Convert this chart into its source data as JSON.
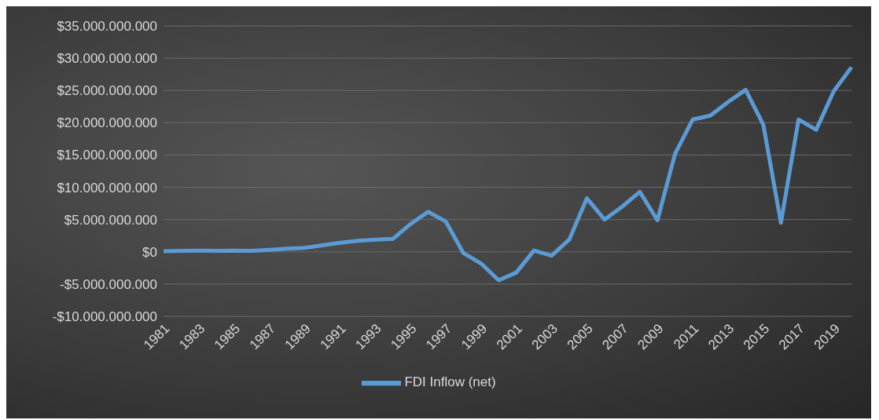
{
  "chart_data": {
    "type": "line",
    "categories": [
      "1981",
      null,
      "1983",
      null,
      "1985",
      null,
      "1987",
      null,
      "1989",
      null,
      "1991",
      null,
      "1993",
      null,
      "1995",
      null,
      "1997",
      null,
      "1999",
      null,
      "2001",
      null,
      "2003",
      null,
      "2005",
      null,
      "2007",
      null,
      "2009",
      null,
      "2011",
      null,
      "2013",
      null,
      "2015",
      null,
      "2017",
      null,
      "2019",
      null
    ],
    "series": [
      {
        "name": "FDI Inflow (net)",
        "color": "#5b9bd5",
        "values": [
          100000000,
          150000000,
          200000000,
          150000000,
          200000000,
          150000000,
          300000000,
          500000000,
          600000000,
          1000000000,
          1400000000,
          1700000000,
          1900000000,
          2000000000,
          4300000000,
          6200000000,
          4700000000,
          -200000000,
          -1800000000,
          -4400000000,
          -3200000000,
          200000000,
          -600000000,
          1900000000,
          8300000000,
          5000000000,
          7000000000,
          9300000000,
          4900000000,
          15200000000,
          20500000000,
          21100000000,
          23200000000,
          25100000000,
          19700000000,
          4500000000,
          20500000000,
          18900000000,
          24900000000,
          28600000000
        ]
      }
    ],
    "ylim": [
      -10000000000,
      35000000000
    ],
    "yticks": [
      {
        "value": -10000000000,
        "label": "-$10.000.000.000"
      },
      {
        "value": -5000000000,
        "label": "-$5.000.000.000"
      },
      {
        "value": 0,
        "label": "$0"
      },
      {
        "value": 5000000000,
        "label": "$5.000.000.000"
      },
      {
        "value": 10000000000,
        "label": "$10.000.000.000"
      },
      {
        "value": 15000000000,
        "label": "$15.000.000.000"
      },
      {
        "value": 20000000000,
        "label": "$20.000.000.000"
      },
      {
        "value": 25000000000,
        "label": "$25.000.000.000"
      },
      {
        "value": 30000000000,
        "label": "$30.000.000.000"
      },
      {
        "value": 35000000000,
        "label": "$35.000.000.000"
      }
    ],
    "grid": "y",
    "legend": "bottom",
    "marker": "none",
    "line_style": "solid"
  }
}
